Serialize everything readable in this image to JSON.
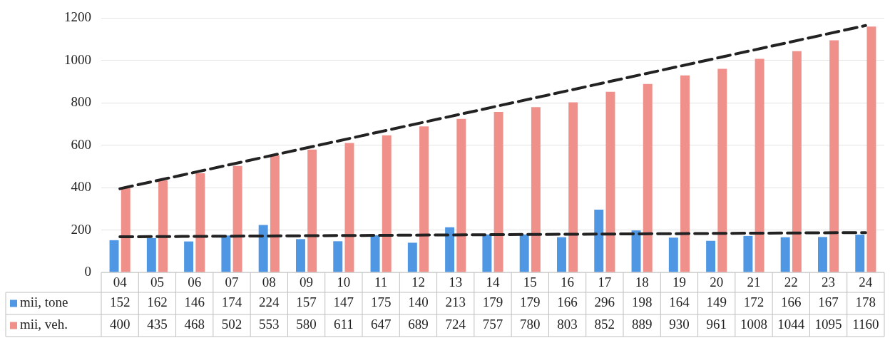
{
  "chart_data": {
    "type": "bar",
    "categories": [
      "04",
      "05",
      "06",
      "07",
      "08",
      "09",
      "10",
      "11",
      "12",
      "13",
      "14",
      "15",
      "16",
      "17",
      "18",
      "19",
      "20",
      "21",
      "22",
      "23",
      "24"
    ],
    "series": [
      {
        "name": "mii, tone",
        "color": "#4f97e3",
        "values": [
          152,
          162,
          146,
          174,
          224,
          157,
          147,
          175,
          140,
          213,
          179,
          179,
          166,
          296,
          198,
          164,
          149,
          172,
          166,
          167,
          178
        ],
        "value_labels": [
          "152",
          "162",
          "146",
          "174",
          "224",
          "157",
          "147",
          "175",
          "140",
          "213",
          "179",
          "179",
          "166",
          "296",
          "198",
          "164",
          "149",
          "172",
          "166",
          "167",
          "178"
        ]
      },
      {
        "name": "mii, veh.",
        "color": "#f0908b",
        "values": [
          400,
          435,
          468,
          502,
          553,
          580,
          611,
          647,
          689,
          724,
          757,
          780,
          803,
          852,
          889,
          930,
          961,
          1008,
          1044,
          1095,
          1160
        ],
        "value_labels": [
          "400",
          "435",
          "468",
          "502",
          "553",
          "580",
          "611",
          "647",
          "689",
          "724",
          "757",
          "780",
          "803",
          "852",
          "889",
          "930",
          "961",
          "1008",
          "1044",
          "1095",
          "1160"
        ]
      },
      {
        "type": "line",
        "color": "#222222",
        "line_style": "dashed",
        "marker": "none",
        "x": [
          "04",
          "24"
        ],
        "values": [
          395,
          1165
        ]
      },
      {
        "type": "line",
        "color": "#222222",
        "line_style": "dashed",
        "marker": "none",
        "x": [
          "04",
          "24"
        ],
        "values": [
          168,
          188
        ]
      }
    ],
    "ylim": [
      0,
      1200
    ],
    "yticks": [
      0,
      200,
      400,
      600,
      800,
      1000,
      1200
    ],
    "grid": "y",
    "legend": "bottom"
  }
}
